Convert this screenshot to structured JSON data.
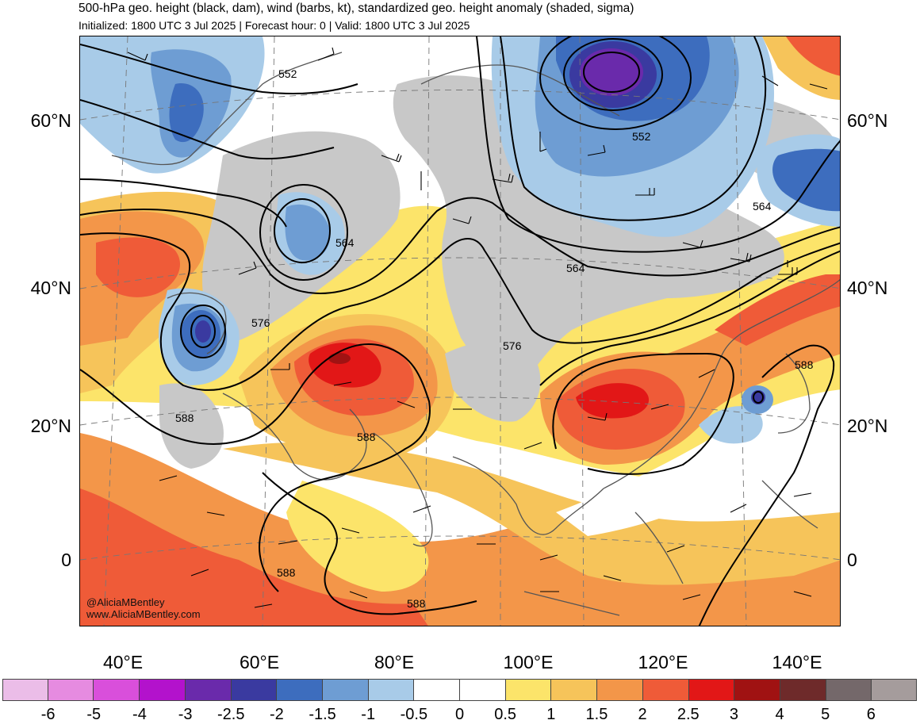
{
  "header": {
    "title": "500-hPa geo. height (black, dam), wind (barbs, kt), standardized geo. height anomaly (shaded, sigma)",
    "subtitle": "Initialized: 1800 UTC 3 Jul 2025 | Forecast hour: 0 | Valid: 1800 UTC 3 Jul 2025"
  },
  "axes": {
    "lat_labels": [
      "60°N",
      "40°N",
      "20°N",
      "0"
    ],
    "lon_labels": [
      "40°E",
      "60°E",
      "80°E",
      "100°E",
      "120°E",
      "140°E"
    ]
  },
  "contour_labels": [
    "552",
    "552",
    "564",
    "564",
    "564",
    "576",
    "576",
    "588",
    "588",
    "588",
    "588",
    "588"
  ],
  "watermark": {
    "handle": "@AliciaMBentley",
    "site": "www.AliciaMBentley.com"
  },
  "colorbar": {
    "labels": [
      "-6",
      "-5",
      "-4",
      "-3",
      "-2.5",
      "-2",
      "-1.5",
      "-1",
      "-0.5",
      "0",
      "0.5",
      "1",
      "1.5",
      "2",
      "2.5",
      "3",
      "4",
      "5",
      "6"
    ],
    "colors": [
      "#ebbde8",
      "#e68be0",
      "#d94fdb",
      "#b312cc",
      "#6a2aab",
      "#3a3aa0",
      "#3d6dbe",
      "#6e9dd3",
      "#a8cbe8",
      "#ffffff",
      "#ffffff",
      "#fce46a",
      "#f6c45a",
      "#f39649",
      "#ef5b38",
      "#e21717",
      "#a01212",
      "#6e2a2a",
      "#74686a",
      "#a59c9c"
    ]
  },
  "shading": {
    "gray": "#c8c8c8",
    "light_blue": "#a8cbe8",
    "mid_blue": "#6e9dd3",
    "blue": "#3d6dbe",
    "dark_blue": "#3a3aa0",
    "purple": "#6a2aab",
    "yellow": "#fce46a",
    "light_orange": "#f6c45a",
    "orange": "#f39649",
    "red_orange": "#ef5b38",
    "red": "#e21717",
    "dark_red": "#a01212"
  }
}
